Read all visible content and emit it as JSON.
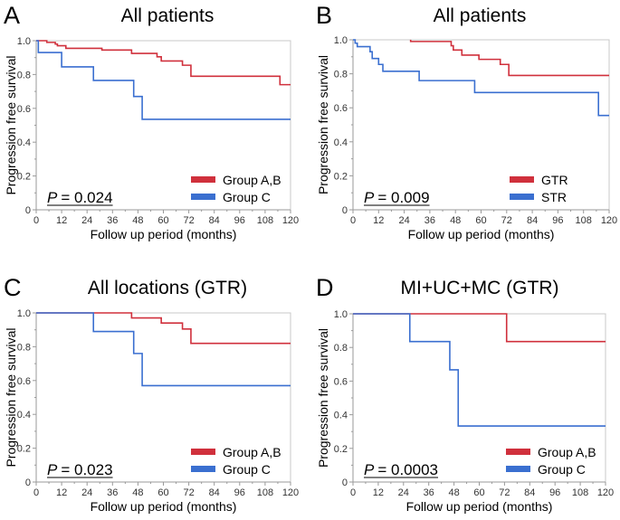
{
  "colors": {
    "red": "#d0303c",
    "blue": "#3a6fd0",
    "axis": "#9a9a9a"
  },
  "chart_data": [
    {
      "type": "line",
      "step": true,
      "panel_letter": "A",
      "title": "All patients",
      "xlabel": "Follow up period (months)",
      "ylabel": "Progression free survival",
      "xlim": [
        0,
        120
      ],
      "ylim": [
        0,
        1
      ],
      "xticks": [
        "0",
        "12",
        "24",
        "36",
        "48",
        "60",
        "72",
        "84",
        "96",
        "108",
        "120"
      ],
      "yticks": [
        "0",
        "0.2",
        "0.4",
        "0.6",
        "0.8",
        "1.0"
      ],
      "pvalue_label": "P",
      "pvalue": "= 0.024",
      "legend": "bottom-right",
      "series": [
        {
          "name": "Group A,B",
          "color": "#d0303c",
          "points": [
            [
              0,
              1
            ],
            [
              5,
              0.99
            ],
            [
              9,
              0.98
            ],
            [
              10,
              0.97
            ],
            [
              14,
              0.955
            ],
            [
              31,
              0.945
            ],
            [
              45,
              0.925
            ],
            [
              57,
              0.905
            ],
            [
              59,
              0.88
            ],
            [
              69,
              0.855
            ],
            [
              73,
              0.79
            ],
            [
              115,
              0.74
            ],
            [
              120,
              0.74
            ]
          ]
        },
        {
          "name": "Group C",
          "color": "#3a6fd0",
          "points": [
            [
              0,
              1
            ],
            [
              1,
              0.93
            ],
            [
              12,
              0.845
            ],
            [
              27,
              0.765
            ],
            [
              46,
              0.67
            ],
            [
              50,
              0.535
            ],
            [
              120,
              0.535
            ]
          ]
        }
      ]
    },
    {
      "type": "line",
      "step": true,
      "panel_letter": "B",
      "title": "All patients",
      "xlabel": "Follow up period (months)",
      "ylabel": "Progression free survival",
      "xlim": [
        0,
        120
      ],
      "ylim": [
        0,
        1
      ],
      "xticks": [
        "0",
        "12",
        "24",
        "36",
        "48",
        "60",
        "72",
        "84",
        "96",
        "108",
        "120"
      ],
      "yticks": [
        "0",
        "0.2",
        "0.4",
        "0.6",
        "0.8",
        "1.0"
      ],
      "pvalue_label": "P",
      "pvalue": "= 0.009",
      "legend": "bottom-right",
      "series": [
        {
          "name": "GTR",
          "color": "#d0303c",
          "points": [
            [
              27,
              1
            ],
            [
              27,
              0.99
            ],
            [
              46,
              0.965
            ],
            [
              47,
              0.94
            ],
            [
              51,
              0.91
            ],
            [
              59,
              0.885
            ],
            [
              69,
              0.855
            ],
            [
              73,
              0.79
            ],
            [
              120,
              0.79
            ]
          ]
        },
        {
          "name": "STR",
          "color": "#3a6fd0",
          "points": [
            [
              0,
              1
            ],
            [
              1,
              0.98
            ],
            [
              2,
              0.96
            ],
            [
              8,
              0.93
            ],
            [
              9,
              0.89
            ],
            [
              12,
              0.855
            ],
            [
              14,
              0.815
            ],
            [
              31,
              0.76
            ],
            [
              57,
              0.69
            ],
            [
              115,
              0.555
            ],
            [
              120,
              0.555
            ]
          ]
        }
      ]
    },
    {
      "type": "line",
      "step": true,
      "panel_letter": "C",
      "title": "All locations (GTR)",
      "xlabel": "Follow up period (months)",
      "ylabel": "Progression free survival",
      "xlim": [
        0,
        120
      ],
      "ylim": [
        0,
        1
      ],
      "xticks": [
        "0",
        "12",
        "24",
        "36",
        "48",
        "60",
        "72",
        "84",
        "96",
        "108",
        "120"
      ],
      "yticks": [
        "0",
        "0.2",
        "0.4",
        "0.6",
        "0.8",
        "1.0"
      ],
      "pvalue_label": "P",
      "pvalue": "= 0.023",
      "legend": "bottom-right",
      "series": [
        {
          "name": "Group A,B",
          "color": "#d0303c",
          "points": [
            [
              0,
              1
            ],
            [
              45,
              0.97
            ],
            [
              59,
              0.94
            ],
            [
              69,
              0.905
            ],
            [
              73,
              0.82
            ],
            [
              120,
              0.82
            ]
          ]
        },
        {
          "name": "Group C",
          "color": "#3a6fd0",
          "points": [
            [
              0,
              1
            ],
            [
              27,
              0.89
            ],
            [
              46,
              0.76
            ],
            [
              50,
              0.57
            ],
            [
              120,
              0.57
            ]
          ]
        }
      ]
    },
    {
      "type": "line",
      "step": true,
      "panel_letter": "D",
      "title": "MI+UC+MC (GTR)",
      "xlabel": "Follow up period (months)",
      "ylabel": "Progression free survival",
      "xlim": [
        0,
        120
      ],
      "ylim": [
        0,
        1
      ],
      "xticks": [
        "0",
        "12",
        "24",
        "36",
        "48",
        "60",
        "72",
        "84",
        "96",
        "108",
        "120"
      ],
      "yticks": [
        "0",
        "0.2",
        "0.4",
        "0.6",
        "0.8",
        "1.0"
      ],
      "pvalue_label": "P",
      "pvalue": "= 0.0003",
      "legend": "bottom-right",
      "series": [
        {
          "name": "Group A,B",
          "color": "#d0303c",
          "points": [
            [
              0,
              1
            ],
            [
              73,
              0.835
            ],
            [
              120,
              0.835
            ]
          ]
        },
        {
          "name": "Group C",
          "color": "#3a6fd0",
          "points": [
            [
              0,
              1
            ],
            [
              27,
              0.835
            ],
            [
              46,
              0.667
            ],
            [
              50,
              0.333
            ],
            [
              120,
              0.333
            ]
          ]
        }
      ]
    }
  ]
}
